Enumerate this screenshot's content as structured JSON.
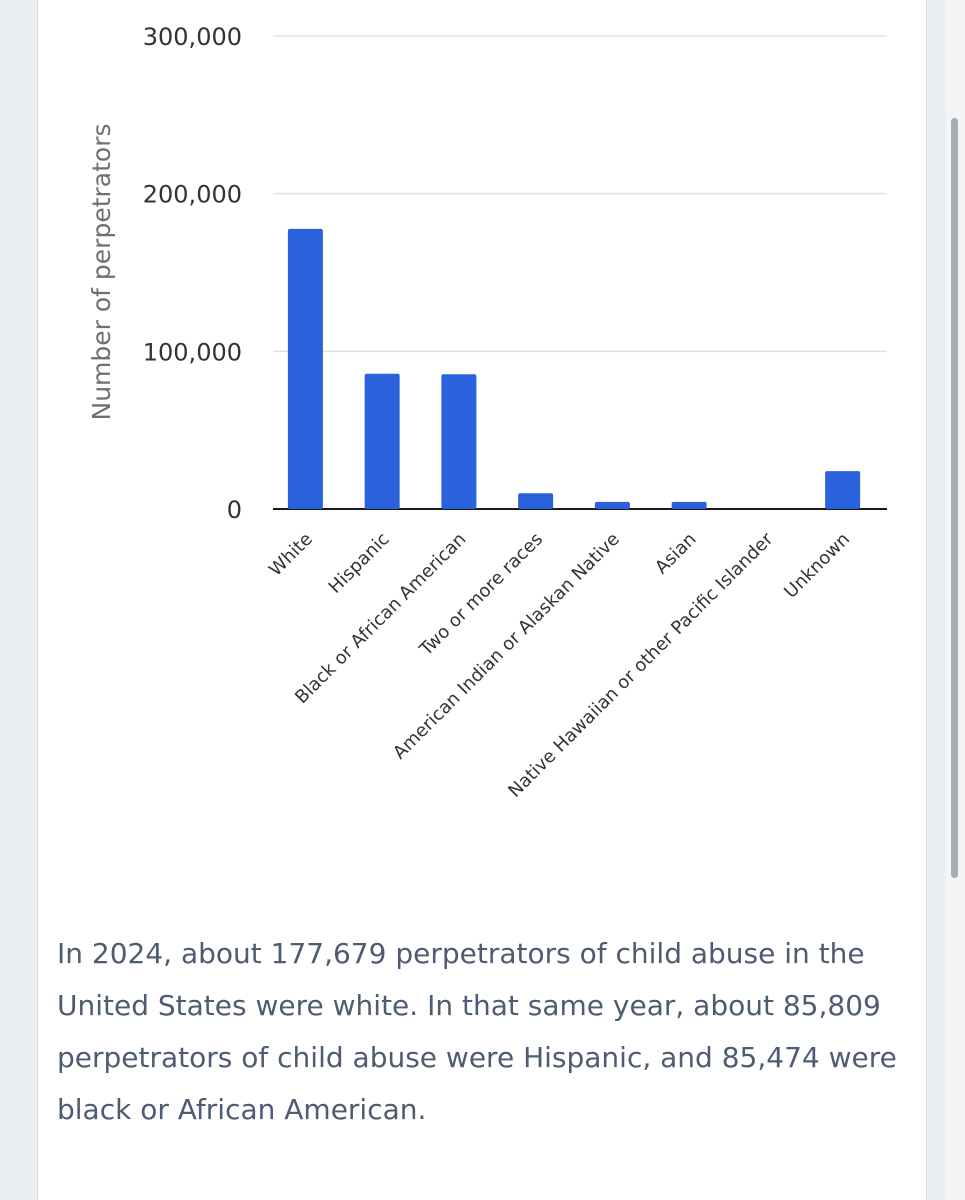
{
  "chart_data": {
    "type": "bar",
    "ylabel": "Number of perpetrators",
    "xlabel": "",
    "ylim": [
      0,
      300000
    ],
    "yticks": [
      0,
      100000,
      200000,
      300000
    ],
    "ytick_labels": [
      "0",
      "100,000",
      "200,000",
      "300,000"
    ],
    "grid": true,
    "categories": [
      "White",
      "Hispanic",
      "Black or African American",
      "Two or more races",
      "American Indian or Alaskan Native",
      "Asian",
      "Native Hawaiian or other Pacific Islander",
      "Unknown"
    ],
    "values": [
      177679,
      85809,
      85474,
      10000,
      4500,
      4500,
      300,
      24000
    ],
    "bar_color": "#2962dc"
  },
  "caption": "In 2024, about 177,679 perpetrators of child abuse in the United States were white. In that same year, about 85,809 perpetrators of child abuse were Hispanic, and 85,474 were black or African American."
}
